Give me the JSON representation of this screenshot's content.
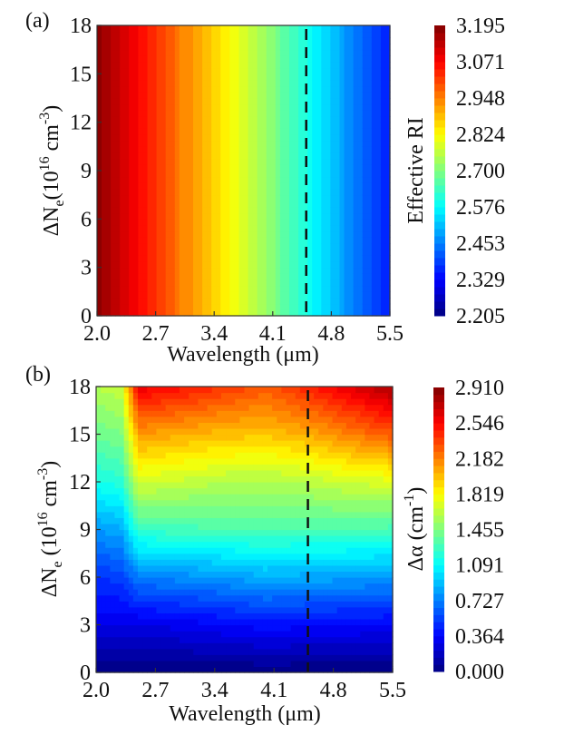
{
  "chart_data": [
    {
      "panel": "(a)",
      "type": "heatmap",
      "xlabel": "Wavelength (μm)",
      "ylabel": {
        "main": "ΔN",
        "sub": "e",
        "paren_open": "(10",
        "sup1": "16",
        "unit": " cm",
        "sup2": "-3",
        "paren_close": ")"
      },
      "colorbar_label": "Effective RI",
      "xlim": [
        2.0,
        5.5
      ],
      "ylim": [
        0,
        18
      ],
      "xticks": [
        "2.0",
        "2.7",
        "3.4",
        "4.1",
        "4.8",
        "5.5"
      ],
      "yticks": [
        "0",
        "3",
        "6",
        "9",
        "12",
        "15",
        "18"
      ],
      "clim": [
        2.205,
        3.195
      ],
      "colorbar_ticks": [
        "2.205",
        "2.329",
        "2.453",
        "2.576",
        "2.700",
        "2.824",
        "2.948",
        "3.071",
        "3.195"
      ],
      "colormap": "jet",
      "dashed_line_x": 4.5,
      "x": [
        2.0,
        2.5,
        3.0,
        3.5,
        4.0,
        4.5,
        5.0,
        5.5
      ],
      "y": [
        0,
        18
      ],
      "z": [
        [
          3.18,
          3.07,
          2.95,
          2.84,
          2.73,
          2.6,
          2.47,
          2.35
        ],
        [
          3.18,
          3.07,
          2.95,
          2.84,
          2.73,
          2.6,
          2.47,
          2.35
        ]
      ]
    },
    {
      "panel": "(b)",
      "type": "heatmap",
      "xlabel": "Wavelength (μm)",
      "ylabel": {
        "main": "ΔN",
        "sub": "e",
        "paren_open": " (10",
        "sup1": "16",
        "unit": " cm",
        "sup2": "-3",
        "paren_close": ")"
      },
      "colorbar_label": {
        "main": "Δα  (cm",
        "sup": "-1",
        "close": ")"
      },
      "xlim": [
        2.0,
        5.5
      ],
      "ylim": [
        0,
        18
      ],
      "xticks": [
        "2.0",
        "2.7",
        "3.4",
        "4.1",
        "4.8",
        "5.5"
      ],
      "yticks": [
        "0",
        "3",
        "6",
        "9",
        "12",
        "15",
        "18"
      ],
      "clim": [
        0.0,
        2.91
      ],
      "colorbar_ticks": [
        "0.000",
        "0.364",
        "0.727",
        "1.091",
        "1.455",
        "1.819",
        "2.182",
        "2.546",
        "2.910"
      ],
      "colormap": "jet",
      "dashed_line_x": 4.5,
      "x": [
        2.0,
        2.3,
        2.5,
        3.0,
        3.5,
        4.0,
        4.5,
        5.0,
        5.5
      ],
      "y": [
        0,
        3,
        6,
        9,
        12,
        15,
        18
      ],
      "z": [
        [
          0.0,
          0.0,
          0.0,
          0.0,
          0.0,
          0.0,
          0.0,
          0.0,
          0.0
        ],
        [
          0.3,
          0.3,
          0.28,
          0.32,
          0.36,
          0.4,
          0.38,
          0.36,
          0.35
        ],
        [
          0.5,
          0.55,
          0.72,
          0.76,
          0.8,
          0.86,
          0.84,
          0.82,
          0.8
        ],
        [
          0.8,
          0.85,
          1.25,
          1.28,
          1.3,
          1.32,
          1.3,
          1.3,
          1.28
        ],
        [
          1.15,
          1.2,
          1.7,
          1.65,
          1.6,
          1.58,
          1.62,
          1.68,
          1.72
        ],
        [
          1.4,
          1.45,
          2.1,
          2.05,
          2.0,
          1.98,
          2.05,
          2.18,
          2.3
        ],
        [
          1.6,
          1.65,
          2.6,
          2.5,
          2.4,
          2.3,
          2.45,
          2.62,
          2.8
        ]
      ]
    }
  ]
}
